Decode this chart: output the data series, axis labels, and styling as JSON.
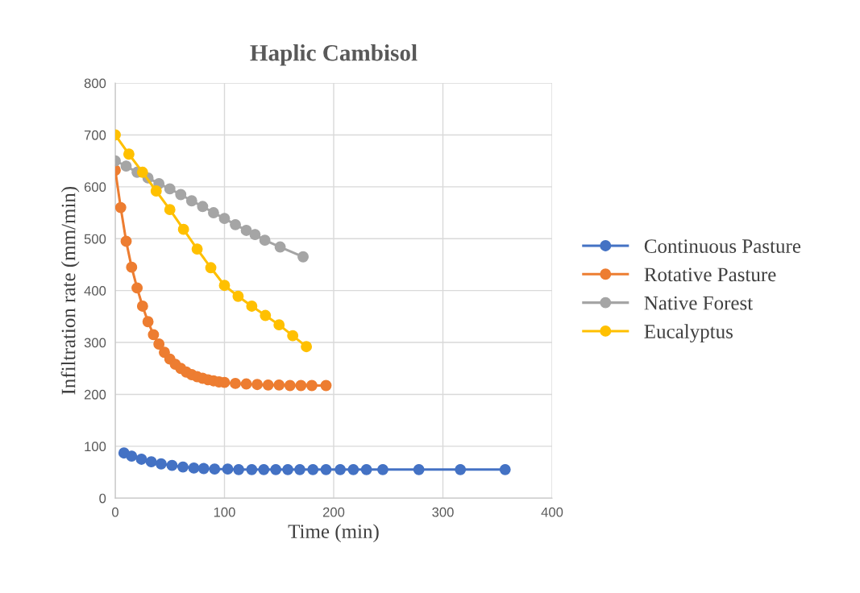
{
  "chart_data": {
    "type": "line",
    "title": "Haplic Cambisol",
    "xlabel": "Time (min)",
    "ylabel": "Infiltration rate (mm/min)",
    "xlim": [
      0,
      400
    ],
    "xticks": [
      0,
      100,
      200,
      300,
      400
    ],
    "ylim": [
      0,
      800
    ],
    "yticks": [
      0,
      100,
      200,
      300,
      400,
      500,
      600,
      700,
      800
    ],
    "grid": true,
    "legend": "right",
    "marker": "circle",
    "line_style": "solid",
    "series": [
      {
        "name": "Continuous Pasture",
        "color": "#4472c4",
        "x": [
          8,
          15,
          24,
          33,
          42,
          52,
          62,
          72,
          81,
          91,
          103,
          113,
          125,
          136,
          147,
          158,
          169,
          181,
          193,
          206,
          218,
          230,
          245,
          278,
          316,
          357
        ],
        "values": [
          87,
          81,
          75,
          70,
          66,
          63,
          60,
          58,
          57,
          56,
          56,
          55,
          55,
          55,
          55,
          55,
          55,
          55,
          55,
          55,
          55,
          55,
          55,
          55,
          55,
          55
        ]
      },
      {
        "name": "Rotative Pasture",
        "color": "#ed7d31",
        "x": [
          0,
          5,
          10,
          15,
          20,
          25,
          30,
          35,
          40,
          45,
          50,
          55,
          60,
          65,
          70,
          75,
          80,
          85,
          90,
          95,
          100,
          110,
          120,
          130,
          140,
          150,
          160,
          170,
          180,
          193
        ],
        "values": [
          632,
          560,
          495,
          445,
          405,
          370,
          340,
          315,
          297,
          281,
          268,
          258,
          250,
          243,
          238,
          234,
          231,
          228,
          226,
          224,
          223,
          221,
          220,
          219,
          218,
          218,
          217,
          217,
          217,
          217
        ]
      },
      {
        "name": "Native Forest",
        "color": "#a5a5a5",
        "x": [
          0,
          10,
          20,
          30,
          40,
          50,
          60,
          70,
          80,
          90,
          100,
          110,
          120,
          128,
          137,
          151,
          172
        ],
        "values": [
          650,
          640,
          628,
          617,
          606,
          596,
          585,
          573,
          562,
          550,
          539,
          527,
          516,
          508,
          497,
          484,
          465
        ]
      },
      {
        "name": "Eucalyptus",
        "color": "#ffc000",
        "x": [
          0,
          12.5,
          25,
          37.5,
          50,
          62.5,
          75,
          87.5,
          100,
          112.5,
          125,
          137.5,
          150,
          162.5,
          175
        ],
        "values": [
          700,
          663,
          628,
          592,
          556,
          518,
          480,
          444,
          410,
          389,
          370,
          352,
          334,
          313,
          292
        ]
      }
    ]
  }
}
